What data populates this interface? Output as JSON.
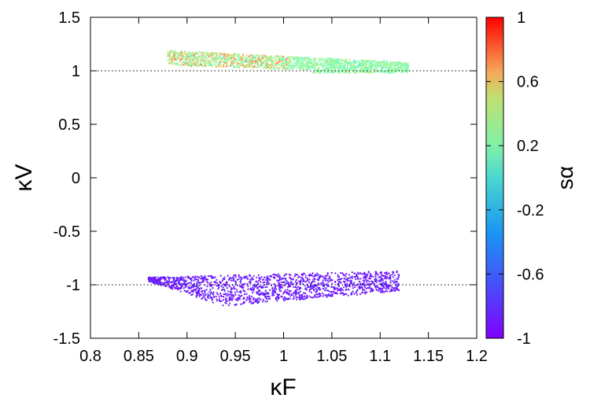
{
  "chart_data": {
    "type": "scatter",
    "xlabel": "κF",
    "ylabel": "κV",
    "colorbar_label": "sα",
    "xlim": [
      0.8,
      1.2
    ],
    "ylim": [
      -1.5,
      1.5
    ],
    "xticks": [
      "0.8",
      "0.85",
      "0.9",
      "0.95",
      "1",
      "1.05",
      "1.1",
      "1.15",
      "1.2"
    ],
    "yticks": [
      "1.5",
      "1",
      "0.5",
      "0",
      "-0.5",
      "-1",
      "-1.5"
    ],
    "colorbar_range": [
      -1,
      1
    ],
    "colorbar_ticks": [
      "1",
      "0.6",
      "0.2",
      "-0.2",
      "-0.6",
      "-1"
    ],
    "colormap": "rainbow",
    "reference_lines": [
      1,
      -1
    ],
    "grid": false,
    "clusters": [
      {
        "color_value_range": [
          -0.4,
          0.7
        ],
        "x_range": [
          0.88,
          1.13
        ],
        "y_top_at_x_min": 1.19,
        "y_top_at_x_max": 1.08,
        "y_bottom": 0.98,
        "approx_points": 1800
      },
      {
        "color_value_range": [
          -1.0,
          -0.85
        ],
        "x_range": [
          0.86,
          1.12
        ],
        "y_top_at_x_min": -0.93,
        "y_top_at_x_max": -0.87,
        "y_bottom_at_x_min": -0.97,
        "y_bottom_at_x_mid": -1.2,
        "y_bottom_at_x_max": -1.06,
        "approx_points": 1600
      }
    ]
  }
}
